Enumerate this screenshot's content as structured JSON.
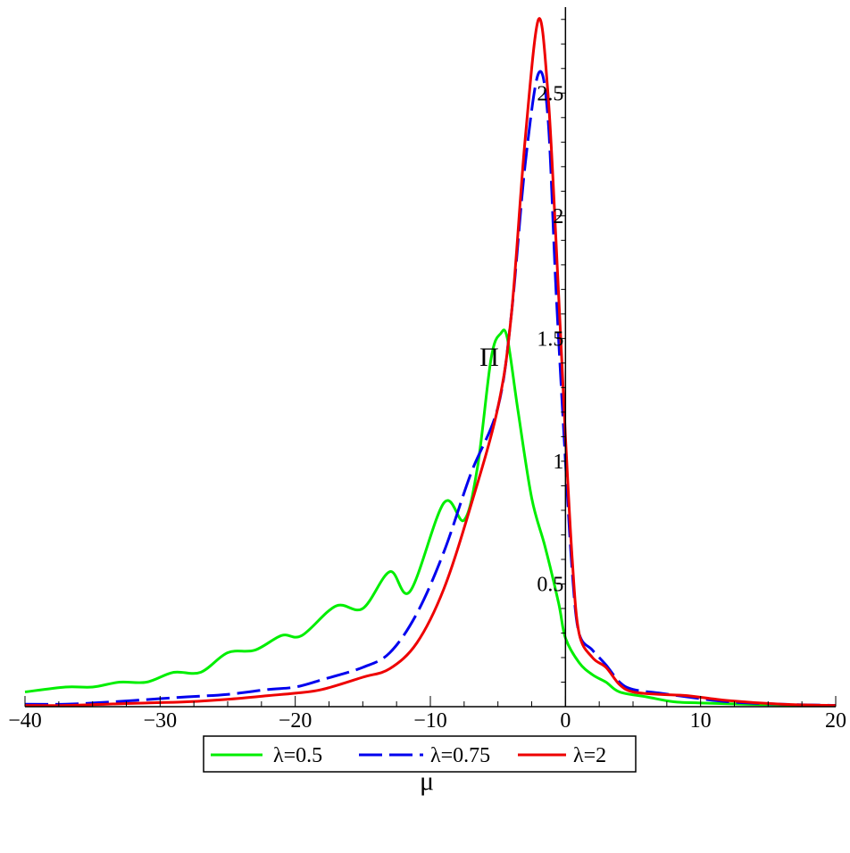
{
  "chart_data": {
    "type": "line",
    "xlabel": "μ",
    "ylabel": "Π",
    "xlim": [
      -40,
      20
    ],
    "ylim": [
      0,
      2.85
    ],
    "x_ticks": [
      -40,
      -30,
      -20,
      -10,
      0,
      10,
      20
    ],
    "x_tick_labels": [
      "−40",
      "−30",
      "−20",
      "−10",
      "0",
      "10",
      "20"
    ],
    "y_ticks": [
      0.5,
      1,
      1.5,
      2,
      2.5
    ],
    "y_tick_labels": [
      "0.5",
      "1",
      "1.5",
      "2",
      "2.5"
    ],
    "legend_position": "bottom",
    "series": [
      {
        "name": "λ=0.5",
        "color": "#00ee00",
        "dash": "solid",
        "points": [
          [
            -40,
            0.06
          ],
          [
            -37,
            0.08
          ],
          [
            -35,
            0.08
          ],
          [
            -33,
            0.1
          ],
          [
            -31,
            0.1
          ],
          [
            -29,
            0.14
          ],
          [
            -27,
            0.14
          ],
          [
            -25,
            0.22
          ],
          [
            -23,
            0.23
          ],
          [
            -21,
            0.29
          ],
          [
            -19.5,
            0.29
          ],
          [
            -17,
            0.41
          ],
          [
            -15,
            0.4
          ],
          [
            -13,
            0.55
          ],
          [
            -11.5,
            0.47
          ],
          [
            -9,
            0.83
          ],
          [
            -7.5,
            0.76
          ],
          [
            -6.5,
            0.98
          ],
          [
            -5.5,
            1.42
          ],
          [
            -4.8,
            1.52
          ],
          [
            -4.3,
            1.5
          ],
          [
            -3.5,
            1.2
          ],
          [
            -2.5,
            0.85
          ],
          [
            -1.5,
            0.65
          ],
          [
            -0.5,
            0.42
          ],
          [
            0,
            0.28
          ],
          [
            1,
            0.18
          ],
          [
            2,
            0.13
          ],
          [
            3,
            0.1
          ],
          [
            4,
            0.06
          ],
          [
            6,
            0.04
          ],
          [
            8,
            0.02
          ],
          [
            10,
            0.015
          ],
          [
            15,
            0.008
          ],
          [
            20,
            0.005
          ]
        ]
      },
      {
        "name": "λ=0.75",
        "color": "#0000ee",
        "dash": "long-dash",
        "points": [
          [
            -40,
            0.01
          ],
          [
            -37,
            0.01
          ],
          [
            -35,
            0.015
          ],
          [
            -32,
            0.025
          ],
          [
            -28,
            0.04
          ],
          [
            -25,
            0.05
          ],
          [
            -22,
            0.07
          ],
          [
            -20,
            0.08
          ],
          [
            -18,
            0.11
          ],
          [
            -15,
            0.16
          ],
          [
            -13,
            0.22
          ],
          [
            -11,
            0.38
          ],
          [
            -9,
            0.63
          ],
          [
            -7,
            0.95
          ],
          [
            -5,
            1.22
          ],
          [
            -4,
            1.6
          ],
          [
            -3,
            2.2
          ],
          [
            -2,
            2.58
          ],
          [
            -1.3,
            2.4
          ],
          [
            -0.7,
            1.7
          ],
          [
            0,
            1.0
          ],
          [
            0.5,
            0.55
          ],
          [
            1,
            0.3
          ],
          [
            2,
            0.23
          ],
          [
            3,
            0.17
          ],
          [
            4,
            0.1
          ],
          [
            5,
            0.07
          ],
          [
            7,
            0.055
          ],
          [
            9,
            0.04
          ],
          [
            12,
            0.02
          ],
          [
            16,
            0.01
          ],
          [
            20,
            0.005
          ]
        ]
      },
      {
        "name": "λ=2",
        "color": "#ee0000",
        "dash": "solid",
        "points": [
          [
            -40,
            0.005
          ],
          [
            -37,
            0.005
          ],
          [
            -34,
            0.01
          ],
          [
            -31,
            0.015
          ],
          [
            -28,
            0.02
          ],
          [
            -25,
            0.03
          ],
          [
            -22,
            0.045
          ],
          [
            -20,
            0.055
          ],
          [
            -18,
            0.07
          ],
          [
            -15,
            0.12
          ],
          [
            -13,
            0.155
          ],
          [
            -11,
            0.26
          ],
          [
            -9,
            0.48
          ],
          [
            -7,
            0.82
          ],
          [
            -5,
            1.22
          ],
          [
            -4,
            1.6
          ],
          [
            -3,
            2.3
          ],
          [
            -2,
            2.8
          ],
          [
            -1.3,
            2.5
          ],
          [
            -0.7,
            1.9
          ],
          [
            0,
            1.1
          ],
          [
            0.5,
            0.6
          ],
          [
            1,
            0.3
          ],
          [
            2,
            0.2
          ],
          [
            3,
            0.16
          ],
          [
            4,
            0.09
          ],
          [
            5,
            0.06
          ],
          [
            7,
            0.05
          ],
          [
            9,
            0.045
          ],
          [
            12,
            0.025
          ],
          [
            16,
            0.01
          ],
          [
            20,
            0.005
          ]
        ]
      }
    ]
  }
}
